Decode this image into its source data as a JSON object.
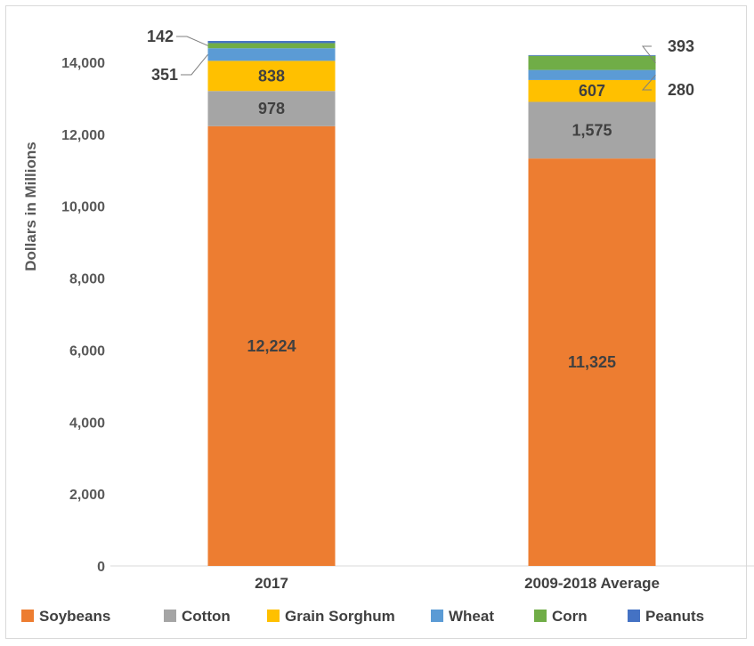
{
  "chart_data": {
    "type": "bar",
    "stacked": true,
    "categories": [
      "2017",
      "2009-2018 Average"
    ],
    "ylabel": "Dollars in Millions",
    "ylim": [
      0,
      15000
    ],
    "yticks": [
      0,
      2000,
      4000,
      6000,
      8000,
      10000,
      12000,
      14000
    ],
    "ytick_labels": [
      "0",
      "2,000",
      "4,000",
      "6,000",
      "8,000",
      "10,000",
      "12,000",
      "14,000"
    ],
    "grid": false,
    "legend": "bottom",
    "series": [
      {
        "name": "Soybeans",
        "color": "#ED7D31",
        "values": [
          12224,
          11325
        ],
        "labels": [
          "12,224",
          "11,325"
        ]
      },
      {
        "name": "Cotton",
        "color": "#A5A5A5",
        "values": [
          978,
          1575
        ],
        "labels": [
          "978",
          "1,575"
        ]
      },
      {
        "name": "Grain Sorghum",
        "color": "#FFC000",
        "values": [
          838,
          607
        ],
        "labels": [
          "838",
          "607"
        ]
      },
      {
        "name": "Wheat",
        "color": "#5B9BD5",
        "values": [
          351,
          280
        ],
        "labels": [
          "351",
          "280"
        ]
      },
      {
        "name": "Corn",
        "color": "#70AD47",
        "values": [
          142,
          393
        ],
        "labels": [
          "142",
          "393"
        ]
      },
      {
        "name": "Peanuts",
        "color": "#4472C4",
        "values": [
          60,
          20
        ],
        "labels": [
          "",
          ""
        ]
      }
    ]
  }
}
